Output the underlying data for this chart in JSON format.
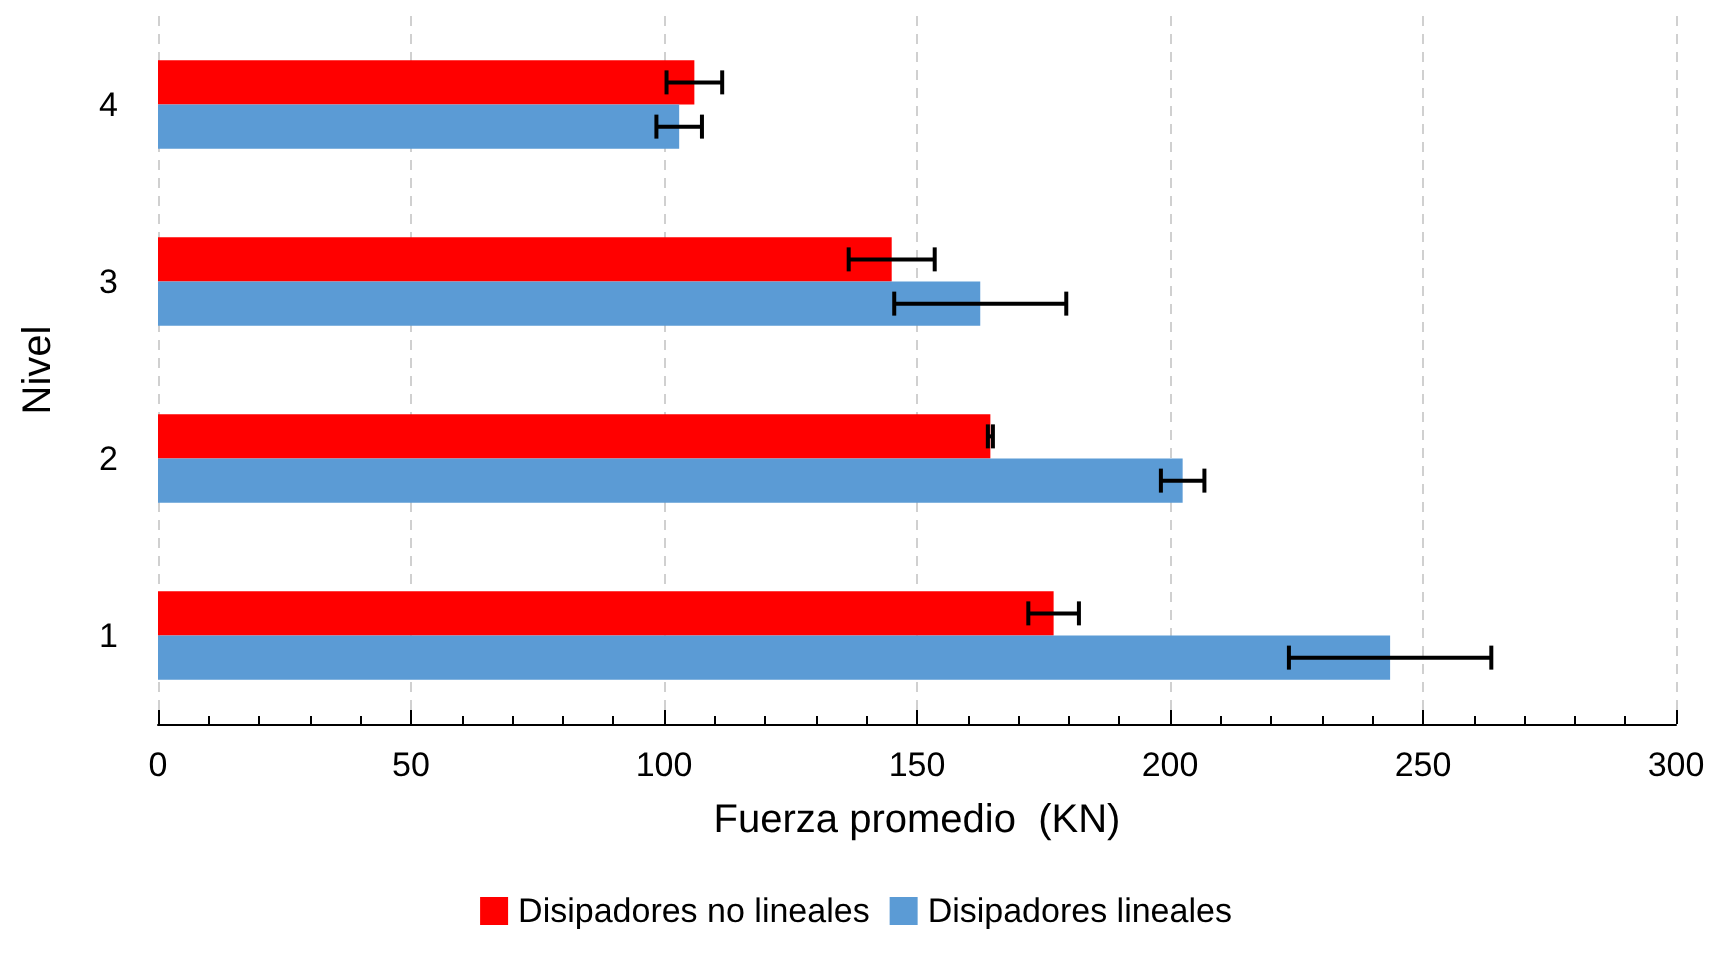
{
  "chart_data": {
    "type": "bar",
    "orientation": "horizontal",
    "xlabel": "Fuerza promedio  (KN)",
    "ylabel": "Nivel",
    "categories": [
      "4",
      "3",
      "2",
      "1"
    ],
    "series": [
      {
        "name": "Disipadores no lineales",
        "color": "#ff0000",
        "values": [
          106,
          145,
          164.5,
          177
        ],
        "errors": [
          5.5,
          8.5,
          0.5,
          5
        ]
      },
      {
        "name": "Disipadores lineales",
        "color": "#5b9bd5",
        "values": [
          103,
          162.5,
          202.5,
          243.5
        ],
        "errors": [
          4.5,
          17,
          4.3,
          20
        ]
      }
    ],
    "xlim": [
      0,
      300
    ],
    "xticks": [
      0,
      50,
      100,
      150,
      200,
      250,
      300
    ],
    "grid": "x",
    "legend": "bottom"
  }
}
